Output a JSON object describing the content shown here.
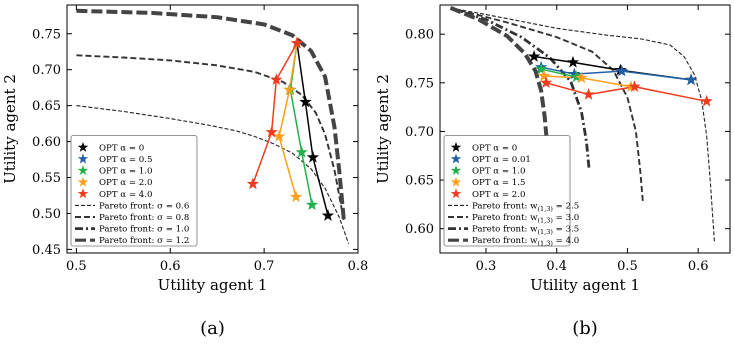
{
  "chart_data": [
    {
      "type": "line",
      "caption": "(a)",
      "xlabel": "Utility agent 1",
      "ylabel": "Utility agent 2",
      "xlim": [
        0.49,
        0.8
      ],
      "ylim": [
        0.445,
        0.79
      ],
      "xticks": [
        0.5,
        0.6,
        0.7,
        0.8
      ],
      "xtick_labels": [
        "0.5",
        "0.6",
        "0.7",
        "0.8"
      ],
      "yticks": [
        0.45,
        0.5,
        0.55,
        0.6,
        0.65,
        0.7,
        0.75
      ],
      "ytick_labels": [
        "0.45",
        "0.50",
        "0.55",
        "0.60",
        "0.65",
        "0.70",
        "0.75"
      ],
      "legend_position": "lower-left",
      "fronts": [
        {
          "name": "Pareto front: σ = 0.6",
          "style": "dashed-thin",
          "x": [
            0.5,
            0.55,
            0.6,
            0.64,
            0.67,
            0.69,
            0.71,
            0.73,
            0.75,
            0.765,
            0.78,
            0.79
          ],
          "y": [
            0.65,
            0.642,
            0.632,
            0.623,
            0.615,
            0.607,
            0.597,
            0.584,
            0.562,
            0.535,
            0.495,
            0.458
          ]
        },
        {
          "name": "Pareto front: σ = 0.8",
          "style": "dashed-medium",
          "x": [
            0.5,
            0.55,
            0.6,
            0.65,
            0.69,
            0.72,
            0.74,
            0.755,
            0.765,
            0.775,
            0.785
          ],
          "y": [
            0.72,
            0.717,
            0.713,
            0.706,
            0.697,
            0.683,
            0.665,
            0.64,
            0.61,
            0.56,
            0.49
          ]
        },
        {
          "name": "Pareto front: σ = 1.0",
          "style": "dashdot",
          "x": [
            0.503,
            0.52,
            0.545,
            0.565
          ],
          "y": [
            0.58,
            0.574,
            0.568,
            0.564
          ]
        },
        {
          "name": "Pareto front: σ = 1.2",
          "style": "dashed-thick",
          "x": [
            0.5,
            0.58,
            0.65,
            0.7,
            0.73,
            0.75,
            0.765,
            0.775,
            0.78,
            0.785
          ],
          "y": [
            0.782,
            0.779,
            0.773,
            0.763,
            0.748,
            0.726,
            0.69,
            0.62,
            0.56,
            0.49
          ]
        }
      ],
      "series": [
        {
          "name": "OPT α = 0",
          "color": "#000000",
          "x": [
            0.768,
            0.752,
            0.744,
            0.735
          ],
          "y": [
            0.497,
            0.578,
            0.655,
            0.737
          ]
        },
        {
          "name": "OPT α = 0.5",
          "color": "#1f5fa8",
          "x": [],
          "y": []
        },
        {
          "name": "OPT α = 1.0",
          "color": "#22b14c",
          "x": [
            0.751,
            0.74,
            0.728,
            0.735
          ],
          "y": [
            0.512,
            0.585,
            0.672,
            0.737
          ]
        },
        {
          "name": "OPT α = 2.0",
          "color": "#ff9f1c",
          "x": [
            0.734,
            0.716,
            0.727,
            0.735
          ],
          "y": [
            0.523,
            0.607,
            0.672,
            0.737
          ]
        },
        {
          "name": "OPT α = 4.0",
          "color": "#f03c1e",
          "x": [
            0.688,
            0.708,
            0.713,
            0.735
          ],
          "y": [
            0.541,
            0.613,
            0.686,
            0.737
          ]
        }
      ]
    },
    {
      "type": "line",
      "caption": "(b)",
      "xlabel": "Utility agent 1",
      "ylabel": "Utility agent 2",
      "xlim": [
        0.235,
        0.645
      ],
      "ylim": [
        0.575,
        0.83
      ],
      "xticks": [
        0.3,
        0.4,
        0.5,
        0.6
      ],
      "xtick_labels": [
        "0.3",
        "0.4",
        "0.5",
        "0.6"
      ],
      "yticks": [
        0.6,
        0.65,
        0.7,
        0.75,
        0.8
      ],
      "ytick_labels": [
        "0.60",
        "0.65",
        "0.70",
        "0.75",
        "0.80"
      ],
      "legend_position": "lower-left",
      "fronts": [
        {
          "name": "Pareto front: w(1,3) = 2.5",
          "style": "dashed-thin",
          "x": [
            0.25,
            0.33,
            0.4,
            0.47,
            0.52,
            0.56,
            0.58,
            0.595,
            0.605,
            0.612,
            0.617,
            0.623
          ],
          "y": [
            0.827,
            0.816,
            0.806,
            0.799,
            0.795,
            0.789,
            0.777,
            0.758,
            0.732,
            0.695,
            0.65,
            0.587
          ]
        },
        {
          "name": "Pareto front: w(1,3) = 3.0",
          "style": "dashed-medium",
          "x": [
            0.25,
            0.33,
            0.4,
            0.45,
            0.48,
            0.5,
            0.512,
            0.518,
            0.522
          ],
          "y": [
            0.827,
            0.812,
            0.797,
            0.782,
            0.763,
            0.735,
            0.7,
            0.66,
            0.626
          ]
        },
        {
          "name": "Pareto front: w(1,3) = 3.5",
          "style": "dashdot",
          "x": [
            0.25,
            0.3,
            0.35,
            0.39,
            0.42,
            0.435,
            0.442,
            0.446
          ],
          "y": [
            0.827,
            0.815,
            0.797,
            0.776,
            0.751,
            0.72,
            0.69,
            0.66
          ]
        },
        {
          "name": "Pareto front: w(1,3) = 4.0",
          "style": "dashed-thick",
          "x": [
            0.25,
            0.29,
            0.33,
            0.355,
            0.37,
            0.378,
            0.383,
            0.386
          ],
          "y": [
            0.827,
            0.815,
            0.798,
            0.78,
            0.762,
            0.742,
            0.715,
            0.69
          ]
        }
      ],
      "series": [
        {
          "name": "OPT α = 0",
          "color": "#000000",
          "x": [
            0.368,
            0.423,
            0.49,
            0.59
          ],
          "y": [
            0.777,
            0.771,
            0.763,
            0.753
          ]
        },
        {
          "name": "OPT α = 0.01",
          "color": "#1f5fa8",
          "x": [
            0.378,
            0.425,
            0.492,
            0.59
          ],
          "y": [
            0.766,
            0.759,
            0.762,
            0.753
          ]
        },
        {
          "name": "OPT α = 1.0",
          "color": "#22b14c",
          "x": [
            0.378,
            0.428
          ],
          "y": [
            0.764,
            0.756
          ]
        },
        {
          "name": "OPT α = 1.5",
          "color": "#ff9f1c",
          "x": [
            0.382,
            0.435,
            0.505
          ],
          "y": [
            0.757,
            0.755,
            0.746
          ]
        },
        {
          "name": "OPT α = 2.0",
          "color": "#f03c1e",
          "x": [
            0.385,
            0.445,
            0.51,
            0.612
          ],
          "y": [
            0.75,
            0.738,
            0.746,
            0.731
          ]
        }
      ]
    }
  ]
}
